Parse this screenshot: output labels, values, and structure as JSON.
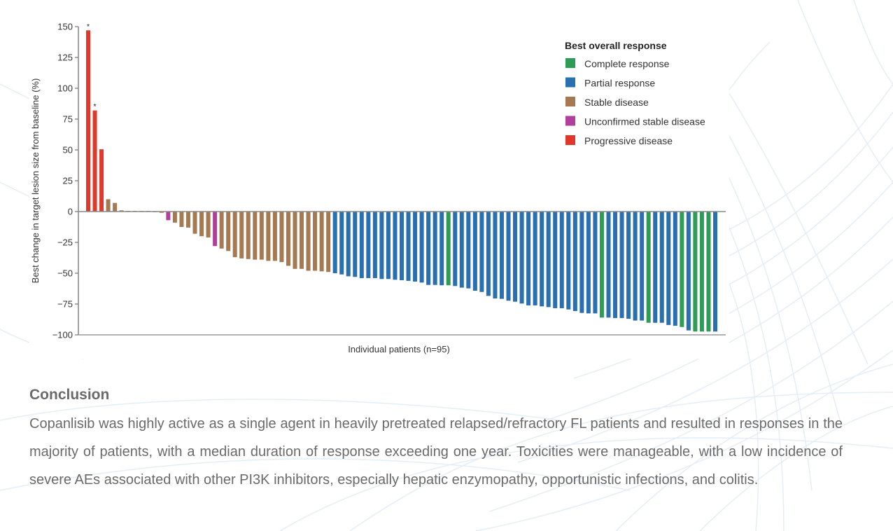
{
  "chart_data": {
    "type": "bar",
    "title": "",
    "xlabel": "Individual patients (n=95)",
    "ylabel": "Best change in target lesion size from baseline (%)",
    "ylim": [
      -100,
      150
    ],
    "yticks": [
      150,
      125,
      100,
      75,
      50,
      25,
      0,
      -25,
      -50,
      -75,
      -100
    ],
    "ytick_labels": [
      "150",
      "125",
      "100",
      "75",
      "50",
      "25",
      "0",
      "−25",
      "−50",
      "−75",
      "−100"
    ],
    "grid": false,
    "legend": {
      "title": "Best overall response",
      "placement": "top-right",
      "entries": [
        {
          "key": "CR",
          "label": "Complete response",
          "color": "#2e9b57"
        },
        {
          "key": "PR",
          "label": "Partial response",
          "color": "#2a6fb0"
        },
        {
          "key": "SD",
          "label": "Stable disease",
          "color": "#a57a52"
        },
        {
          "key": "USD",
          "label": "Unconfirmed stable disease",
          "color": "#b0409c"
        },
        {
          "key": "PD",
          "label": "Progressive disease",
          "color": "#e0392b"
        }
      ]
    },
    "annotations": [
      {
        "patient": 1,
        "text": "*"
      },
      {
        "patient": 2,
        "text": "*"
      }
    ],
    "categories": [
      "PD",
      "PD",
      "PD",
      "SD",
      "SD",
      "SD",
      "SD",
      "SD",
      "SD",
      "SD",
      "SD",
      "SD",
      "USD",
      "SD",
      "SD",
      "SD",
      "SD",
      "SD",
      "SD",
      "USD",
      "SD",
      "SD",
      "SD",
      "SD",
      "SD",
      "SD",
      "SD",
      "SD",
      "SD",
      "SD",
      "SD",
      "SD",
      "SD",
      "SD",
      "SD",
      "SD",
      "SD",
      "PR",
      "PR",
      "PR",
      "PR",
      "PR",
      "PR",
      "PR",
      "PR",
      "PR",
      "PR",
      "PR",
      "PR",
      "PR",
      "PR",
      "PR",
      "PR",
      "PR",
      "CR",
      "PR",
      "PR",
      "PR",
      "PR",
      "PR",
      "PR",
      "PR",
      "PR",
      "PR",
      "PR",
      "PR",
      "PR",
      "PR",
      "PR",
      "PR",
      "PR",
      "PR",
      "PR",
      "PR",
      "PR",
      "PR",
      "PR",
      "CR",
      "PR",
      "PR",
      "PR",
      "PR",
      "PR",
      "PR",
      "CR",
      "PR",
      "PR",
      "PR",
      "PR",
      "CR",
      "PR",
      "CR",
      "CR",
      "CR",
      "PR"
    ],
    "values": [
      147,
      82,
      50.5,
      10,
      7,
      1,
      0,
      0,
      0,
      0,
      -0.5,
      -1,
      -7,
      -9,
      -12.5,
      -13,
      -18,
      -20,
      -21,
      -28,
      -30,
      -32,
      -37,
      -38,
      -38.5,
      -39,
      -39,
      -40,
      -40,
      -41,
      -44,
      -46.5,
      -46.5,
      -48,
      -48,
      -48.5,
      -49,
      -50,
      -51,
      -52.5,
      -53,
      -54,
      -54,
      -54,
      -54.7,
      -54.7,
      -55.3,
      -55.7,
      -56.2,
      -56.8,
      -57.6,
      -59.5,
      -59.5,
      -59.8,
      -59.8,
      -60.4,
      -61.7,
      -62.3,
      -64.2,
      -65.2,
      -68.4,
      -70.5,
      -70.8,
      -72.3,
      -73.1,
      -74.6,
      -76.1,
      -76.1,
      -76.9,
      -77.5,
      -78.4,
      -78.4,
      -79.4,
      -80.7,
      -82.2,
      -82.6,
      -82.6,
      -86,
      -86,
      -86.4,
      -86.4,
      -87,
      -88.4,
      -88.4,
      -90.2,
      -90.2,
      -90.2,
      -92,
      -92.6,
      -93.6,
      -96.4,
      -97.3,
      -97.3,
      -97.3,
      -97.3
    ]
  },
  "conclusion": {
    "heading": "Conclusion",
    "body": "Copanlisib was highly active as a single agent in heavily pretreated relapsed/refractory FL patients and resulted in responses in the majority of patients, with a median duration of response exceeding one year. Toxicities were manageable, with a low incidence of severe AEs associated with other PI3K inhibitors, especially hepatic enzymopathy, opportunistic infections, and colitis."
  },
  "colors": {
    "axis": "#8a8a8a",
    "text": "#6a6a6a",
    "background_lines": "#e6eff6"
  }
}
